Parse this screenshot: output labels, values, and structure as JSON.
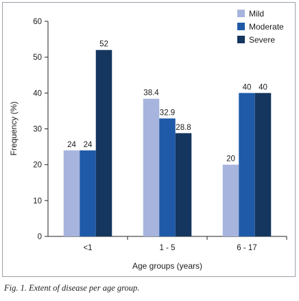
{
  "chart_data": {
    "type": "bar",
    "categories": [
      "<1",
      "1 - 5",
      "6 - 17"
    ],
    "series": [
      {
        "name": "Mild",
        "values": [
          24,
          38.4,
          20
        ],
        "labels": [
          "24",
          "38.4",
          "20"
        ],
        "color": "#a7b4dd"
      },
      {
        "name": "Moderate",
        "values": [
          24,
          32.9,
          40
        ],
        "labels": [
          "24",
          "32.9",
          "40"
        ],
        "color": "#1f5aa8"
      },
      {
        "name": "Severe",
        "values": [
          52,
          28.8,
          40
        ],
        "labels": [
          "52",
          "28.8",
          "40"
        ],
        "color": "#14365f"
      }
    ],
    "xlabel": "Age groups (years)",
    "ylabel": "Frequency (%)",
    "ylim": [
      0,
      60
    ],
    "yticks": [
      0,
      10,
      20,
      30,
      40,
      50,
      60
    ],
    "grid": false,
    "legend_position": "top-right"
  },
  "caption": "Fig. 1. Extent of disease per age group."
}
